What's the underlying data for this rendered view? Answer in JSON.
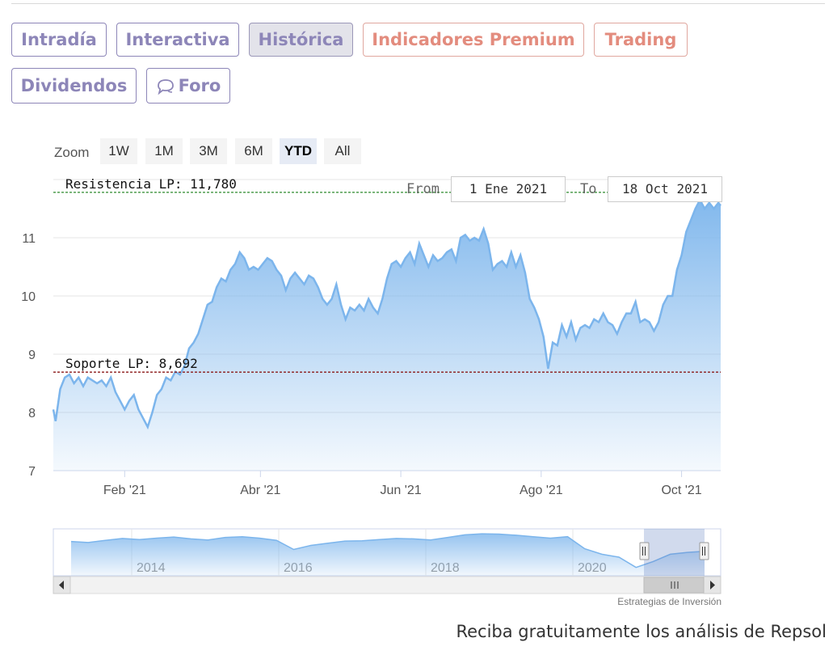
{
  "tabs": [
    {
      "label": "Intradía",
      "style": "normal"
    },
    {
      "label": "Interactiva",
      "style": "normal"
    },
    {
      "label": "Histórica",
      "style": "active"
    },
    {
      "label": "Indicadores Premium",
      "style": "premium"
    },
    {
      "label": "Trading",
      "style": "premium"
    },
    {
      "label": "Dividendos",
      "style": "normal"
    },
    {
      "label": "Foro",
      "style": "normal",
      "icon": "chat-bubble-icon"
    }
  ],
  "zoom": {
    "label": "Zoom",
    "buttons": [
      "1W",
      "1M",
      "3M",
      "6M",
      "YTD",
      "All"
    ],
    "selected": "YTD"
  },
  "range": {
    "from_label": "From",
    "from_value": "1 Ene 2021",
    "to_label": "To",
    "to_value": "18 Oct 2021"
  },
  "chart_data": {
    "type": "area",
    "yticks": [
      7,
      8,
      9,
      10,
      11
    ],
    "ylim": [
      7,
      12
    ],
    "xlim": [
      "2021-01-01",
      "2021-10-18"
    ],
    "xticks": [
      {
        "label": "Feb '21",
        "date": "2021-02-01"
      },
      {
        "label": "Abr '21",
        "date": "2021-04-01"
      },
      {
        "label": "Jun '21",
        "date": "2021-06-01"
      },
      {
        "label": "Ago '21",
        "date": "2021-08-01"
      },
      {
        "label": "Oct '21",
        "date": "2021-10-01"
      }
    ],
    "levels": [
      {
        "label": "Resistencia LP: 11,780",
        "value": 11.78,
        "color": "#2e8b2e"
      },
      {
        "label": "Soporte LP: 8,692",
        "value": 8.692,
        "color": "#8b1a1a"
      }
    ],
    "series": [
      {
        "points": [
          [
            "2021-01-01",
            8.05
          ],
          [
            "2021-01-02",
            7.85
          ],
          [
            "2021-01-04",
            8.4
          ],
          [
            "2021-01-06",
            8.6
          ],
          [
            "2021-01-08",
            8.65
          ],
          [
            "2021-01-10",
            8.5
          ],
          [
            "2021-01-12",
            8.6
          ],
          [
            "2021-01-14",
            8.45
          ],
          [
            "2021-01-16",
            8.6
          ],
          [
            "2021-01-18",
            8.55
          ],
          [
            "2021-01-20",
            8.5
          ],
          [
            "2021-01-22",
            8.55
          ],
          [
            "2021-01-24",
            8.45
          ],
          [
            "2021-01-26",
            8.6
          ],
          [
            "2021-01-28",
            8.35
          ],
          [
            "2021-01-30",
            8.2
          ],
          [
            "2021-02-01",
            8.05
          ],
          [
            "2021-02-03",
            8.2
          ],
          [
            "2021-02-05",
            8.3
          ],
          [
            "2021-02-07",
            8.05
          ],
          [
            "2021-02-09",
            7.9
          ],
          [
            "2021-02-11",
            7.75
          ],
          [
            "2021-02-13",
            8.0
          ],
          [
            "2021-02-15",
            8.3
          ],
          [
            "2021-02-17",
            8.4
          ],
          [
            "2021-02-19",
            8.6
          ],
          [
            "2021-02-21",
            8.55
          ],
          [
            "2021-02-23",
            8.7
          ],
          [
            "2021-02-25",
            8.65
          ],
          [
            "2021-02-27",
            8.8
          ],
          [
            "2021-03-01",
            9.1
          ],
          [
            "2021-03-03",
            9.2
          ],
          [
            "2021-03-05",
            9.35
          ],
          [
            "2021-03-07",
            9.6
          ],
          [
            "2021-03-09",
            9.85
          ],
          [
            "2021-03-11",
            9.9
          ],
          [
            "2021-03-13",
            10.15
          ],
          [
            "2021-03-15",
            10.3
          ],
          [
            "2021-03-17",
            10.25
          ],
          [
            "2021-03-19",
            10.45
          ],
          [
            "2021-03-21",
            10.55
          ],
          [
            "2021-03-23",
            10.75
          ],
          [
            "2021-03-25",
            10.65
          ],
          [
            "2021-03-27",
            10.45
          ],
          [
            "2021-03-29",
            10.5
          ],
          [
            "2021-03-31",
            10.45
          ],
          [
            "2021-04-02",
            10.55
          ],
          [
            "2021-04-04",
            10.65
          ],
          [
            "2021-04-06",
            10.6
          ],
          [
            "2021-04-08",
            10.45
          ],
          [
            "2021-04-10",
            10.35
          ],
          [
            "2021-04-12",
            10.1
          ],
          [
            "2021-04-14",
            10.3
          ],
          [
            "2021-04-16",
            10.4
          ],
          [
            "2021-04-18",
            10.3
          ],
          [
            "2021-04-20",
            10.2
          ],
          [
            "2021-04-22",
            10.35
          ],
          [
            "2021-04-24",
            10.3
          ],
          [
            "2021-04-26",
            10.15
          ],
          [
            "2021-04-28",
            9.95
          ],
          [
            "2021-04-30",
            9.85
          ],
          [
            "2021-05-02",
            9.95
          ],
          [
            "2021-05-04",
            10.2
          ],
          [
            "2021-05-06",
            9.85
          ],
          [
            "2021-05-08",
            9.6
          ],
          [
            "2021-05-10",
            9.8
          ],
          [
            "2021-05-12",
            9.75
          ],
          [
            "2021-05-14",
            9.85
          ],
          [
            "2021-05-16",
            9.75
          ],
          [
            "2021-05-18",
            9.95
          ],
          [
            "2021-05-20",
            9.8
          ],
          [
            "2021-05-22",
            9.7
          ],
          [
            "2021-05-24",
            9.95
          ],
          [
            "2021-05-26",
            10.3
          ],
          [
            "2021-05-28",
            10.55
          ],
          [
            "2021-05-30",
            10.6
          ],
          [
            "2021-06-01",
            10.5
          ],
          [
            "2021-06-03",
            10.65
          ],
          [
            "2021-06-05",
            10.75
          ],
          [
            "2021-06-07",
            10.55
          ],
          [
            "2021-06-09",
            10.9
          ],
          [
            "2021-06-11",
            10.7
          ],
          [
            "2021-06-13",
            10.5
          ],
          [
            "2021-06-15",
            10.7
          ],
          [
            "2021-06-17",
            10.6
          ],
          [
            "2021-06-19",
            10.65
          ],
          [
            "2021-06-21",
            10.75
          ],
          [
            "2021-06-23",
            10.8
          ],
          [
            "2021-06-25",
            10.6
          ],
          [
            "2021-06-27",
            11.0
          ],
          [
            "2021-06-29",
            11.05
          ],
          [
            "2021-07-01",
            10.95
          ],
          [
            "2021-07-03",
            11.0
          ],
          [
            "2021-07-05",
            10.95
          ],
          [
            "2021-07-07",
            11.15
          ],
          [
            "2021-07-09",
            10.9
          ],
          [
            "2021-07-11",
            10.45
          ],
          [
            "2021-07-13",
            10.55
          ],
          [
            "2021-07-15",
            10.6
          ],
          [
            "2021-07-17",
            10.5
          ],
          [
            "2021-07-19",
            10.75
          ],
          [
            "2021-07-21",
            10.5
          ],
          [
            "2021-07-23",
            10.7
          ],
          [
            "2021-07-25",
            10.4
          ],
          [
            "2021-07-27",
            9.95
          ],
          [
            "2021-07-29",
            9.8
          ],
          [
            "2021-07-31",
            9.6
          ],
          [
            "2021-08-02",
            9.3
          ],
          [
            "2021-08-04",
            8.75
          ],
          [
            "2021-08-06",
            9.2
          ],
          [
            "2021-08-08",
            9.15
          ],
          [
            "2021-08-10",
            9.5
          ],
          [
            "2021-08-12",
            9.3
          ],
          [
            "2021-08-14",
            9.55
          ],
          [
            "2021-08-16",
            9.25
          ],
          [
            "2021-08-18",
            9.45
          ],
          [
            "2021-08-20",
            9.5
          ],
          [
            "2021-08-22",
            9.45
          ],
          [
            "2021-08-24",
            9.6
          ],
          [
            "2021-08-26",
            9.55
          ],
          [
            "2021-08-28",
            9.7
          ],
          [
            "2021-08-30",
            9.55
          ],
          [
            "2021-09-01",
            9.5
          ],
          [
            "2021-09-03",
            9.35
          ],
          [
            "2021-09-05",
            9.55
          ],
          [
            "2021-09-07",
            9.7
          ],
          [
            "2021-09-09",
            9.7
          ],
          [
            "2021-09-11",
            9.9
          ],
          [
            "2021-09-13",
            9.55
          ],
          [
            "2021-09-15",
            9.6
          ],
          [
            "2021-09-17",
            9.55
          ],
          [
            "2021-09-19",
            9.4
          ],
          [
            "2021-09-21",
            9.55
          ],
          [
            "2021-09-23",
            9.85
          ],
          [
            "2021-09-25",
            10.0
          ],
          [
            "2021-09-27",
            10.0
          ],
          [
            "2021-09-29",
            10.45
          ],
          [
            "2021-10-01",
            10.7
          ],
          [
            "2021-10-03",
            11.1
          ],
          [
            "2021-10-05",
            11.3
          ],
          [
            "2021-10-07",
            11.5
          ],
          [
            "2021-10-09",
            11.65
          ],
          [
            "2021-10-11",
            11.5
          ],
          [
            "2021-10-13",
            11.6
          ],
          [
            "2021-10-15",
            11.5
          ],
          [
            "2021-10-17",
            11.6
          ],
          [
            "2021-10-18",
            11.55
          ]
        ]
      }
    ],
    "navigator": {
      "years": [
        "2014",
        "2016",
        "2018",
        "2020"
      ],
      "values": [
        14.5,
        14.2,
        14.8,
        15.3,
        15.0,
        15.4,
        15.7,
        15.2,
        14.9,
        15.6,
        15.8,
        15.4,
        14.8,
        12.3,
        13.4,
        14.0,
        14.6,
        14.7,
        15.0,
        15.3,
        15.2,
        14.9,
        15.6,
        16.3,
        16.6,
        16.5,
        16.2,
        15.8,
        15.4,
        15.8,
        12.5,
        11.0,
        10.2,
        7.4,
        9.0,
        11.0,
        11.5,
        11.8
      ]
    },
    "credit": "Estrategias de Inversión"
  },
  "footer_text": "Reciba gratuitamente los análisis de Repsol"
}
